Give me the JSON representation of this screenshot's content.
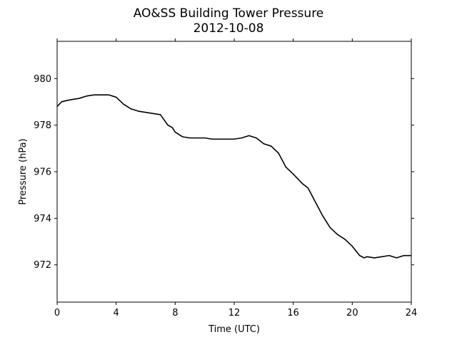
{
  "chart_data": {
    "type": "line",
    "title": "AO&SS Building Tower Pressure",
    "subtitle": "2012-10-08",
    "xlabel": "Time (UTC)",
    "ylabel": "Pressure (hPa)",
    "xlim": [
      0,
      24
    ],
    "ylim": [
      970.4,
      981.6
    ],
    "xticks": [
      0,
      4,
      8,
      12,
      16,
      20,
      24
    ],
    "yticks": [
      972,
      974,
      976,
      978,
      980
    ],
    "grid": false,
    "line_color": "#000000",
    "series": [
      {
        "x": [
          0,
          0.3,
          0.6,
          1.0,
          1.5,
          2.0,
          2.5,
          3.0,
          3.5,
          4.0,
          4.5,
          5.0,
          5.5,
          6.0,
          6.5,
          7.0,
          7.5,
          7.8,
          8.0,
          8.5,
          9.0,
          9.5,
          10.0,
          10.5,
          11.0,
          11.5,
          12.0,
          12.5,
          13.0,
          13.5,
          14.0,
          14.5,
          15.0,
          15.5,
          16.0,
          16.3,
          16.6,
          17.0,
          17.5,
          18.0,
          18.5,
          19.0,
          19.5,
          20.0,
          20.5,
          20.8,
          21.0,
          21.5,
          22.0,
          22.5,
          23.0,
          23.5,
          24.0
        ],
        "values": [
          978.8,
          979.0,
          979.05,
          979.1,
          979.15,
          979.25,
          979.3,
          979.3,
          979.3,
          979.2,
          978.9,
          978.7,
          978.6,
          978.55,
          978.5,
          978.45,
          978.0,
          977.9,
          977.7,
          977.5,
          977.45,
          977.45,
          977.45,
          977.4,
          977.4,
          977.4,
          977.4,
          977.45,
          977.55,
          977.45,
          977.2,
          977.1,
          976.8,
          976.2,
          975.9,
          975.7,
          975.5,
          975.3,
          974.7,
          974.1,
          973.6,
          973.3,
          973.1,
          972.8,
          972.4,
          972.3,
          972.35,
          972.3,
          972.35,
          972.4,
          972.3,
          972.4,
          972.4
        ]
      }
    ]
  }
}
